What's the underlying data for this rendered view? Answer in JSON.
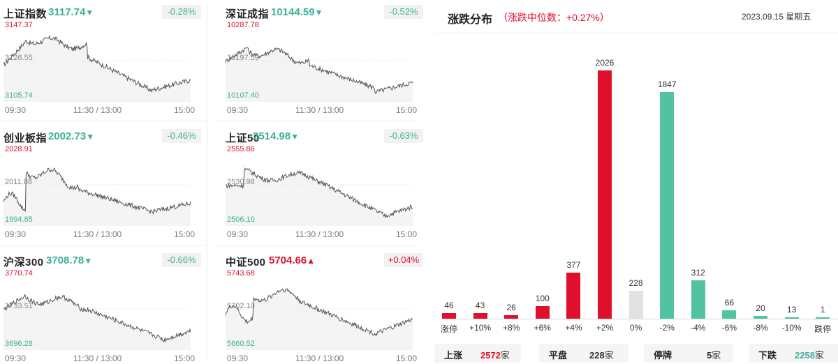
{
  "indices": [
    {
      "name": "上证指数",
      "price": "3117.74",
      "direction": "down",
      "arrow": "▼",
      "change": "-0.28%",
      "high": "3147.37",
      "mid": "3126.55",
      "low": "3105.74"
    },
    {
      "name": "深证成指",
      "price": "10144.59",
      "direction": "down",
      "arrow": "▼",
      "change": "-0.52%",
      "high": "10287.78",
      "mid": "10197.59",
      "low": "10107.40"
    },
    {
      "name": "创业板指",
      "price": "2002.73",
      "direction": "down",
      "arrow": "▼",
      "change": "-0.46%",
      "high": "2028.91",
      "mid": "2011.88",
      "low": "1994.85"
    },
    {
      "name": "上证50",
      "price": "2514.98",
      "direction": "down",
      "arrow": "▼",
      "change": "-0.63%",
      "high": "2555.86",
      "mid": "2530.98",
      "low": "2506.10"
    },
    {
      "name": "沪深300",
      "price": "3708.78",
      "direction": "down",
      "arrow": "▼",
      "change": "-0.66%",
      "high": "3770.74",
      "mid": "3733.51",
      "low": "3696.28"
    },
    {
      "name": "中证500",
      "price": "5704.66",
      "direction": "up",
      "arrow": "▲",
      "change": "+0.04%",
      "high": "5743.68",
      "mid": "5702.10",
      "low": "5660.52"
    }
  ],
  "time_axis": [
    "09:30",
    "11:30 / 13:00",
    "15:00"
  ],
  "distribution": {
    "title": "涨跌分布",
    "subtitle": "（涨跌中位数：+0.27%）",
    "date": "2023.09.15 星期五"
  },
  "summary": [
    {
      "label": "上涨",
      "value": "2572",
      "unit": "家",
      "color": "#e00f2c"
    },
    {
      "label": "平盘",
      "value": "228",
      "unit": "家",
      "color": "#333333"
    },
    {
      "label": "停牌",
      "value": "5",
      "unit": "家",
      "color": "#333333"
    },
    {
      "label": "下跌",
      "value": "2258",
      "unit": "家",
      "color": "#3cb095"
    }
  ],
  "chart_data": {
    "type": "bar",
    "categories": [
      "涨停",
      "+10%",
      "+8%",
      "+6%",
      "+4%",
      "+2%",
      "0%",
      "-2%",
      "-4%",
      "-6%",
      "-8%",
      "-10%",
      "跌停"
    ],
    "values": [
      46,
      43,
      26,
      100,
      377,
      2026,
      228,
      1847,
      312,
      66,
      20,
      13,
      1
    ],
    "colors": [
      "#e00f2c",
      "#e00f2c",
      "#e00f2c",
      "#e00f2c",
      "#e00f2c",
      "#e00f2c",
      "#e2e2e2",
      "#52c3a0",
      "#52c3a0",
      "#52c3a0",
      "#52c3a0",
      "#52c3a0",
      "#52c3a0"
    ],
    "title": "涨跌分布",
    "xlabel": "",
    "ylabel": "",
    "ylim": [
      0,
      2026
    ],
    "grid": false,
    "legend": "none"
  },
  "colors": {
    "up": "#e00f2c",
    "down": "#3cb095",
    "up_bar": "#e00f2c",
    "down_bar": "#52c3a0",
    "flat_bar": "#e2e2e2"
  }
}
